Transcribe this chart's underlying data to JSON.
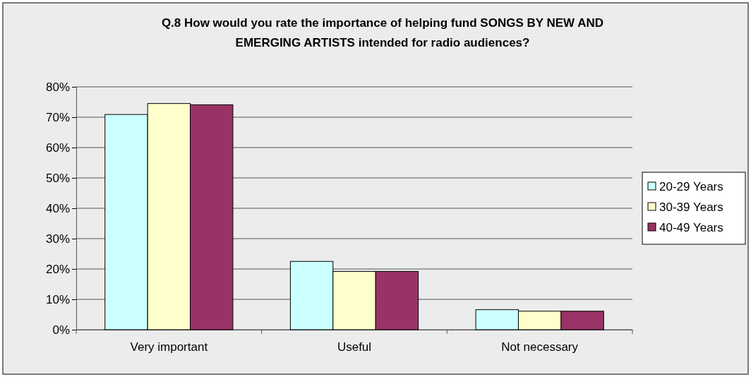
{
  "chart_data": {
    "type": "bar",
    "title": "Q.8 How would you rate the importance of helping fund SONGS BY NEW AND EMERGING ARTISTS intended for radio audiences?",
    "categories": [
      "Very important",
      "Useful",
      "Not necessary"
    ],
    "series": [
      {
        "name": "20-29 Years",
        "color": "#ccffff",
        "values": [
          70.9,
          22.5,
          6.6
        ]
      },
      {
        "name": "30-39 Years",
        "color": "#ffffcc",
        "values": [
          74.5,
          19.2,
          6.1
        ]
      },
      {
        "name": "40-49 Years",
        "color": "#993366",
        "values": [
          74.1,
          19.2,
          6.1
        ]
      }
    ],
    "ylim": [
      0,
      80
    ],
    "yticks": [
      {
        "value": 0,
        "label": "0%"
      },
      {
        "value": 10,
        "label": "10%"
      },
      {
        "value": 20,
        "label": "20%"
      },
      {
        "value": 30,
        "label": "30%"
      },
      {
        "value": 40,
        "label": "40%"
      },
      {
        "value": 50,
        "label": "50%"
      },
      {
        "value": 60,
        "label": "60%"
      },
      {
        "value": 70,
        "label": "70%"
      },
      {
        "value": 80,
        "label": "80%"
      }
    ],
    "grid": "y",
    "legend": "right"
  }
}
